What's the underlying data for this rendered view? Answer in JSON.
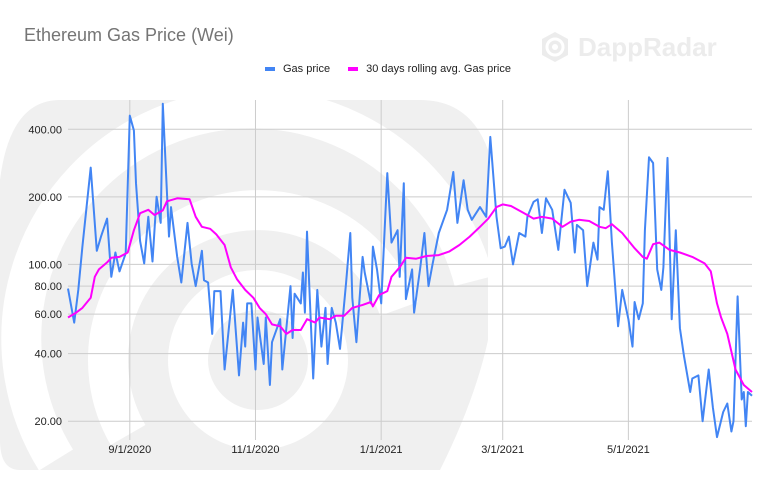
{
  "chart_data": {
    "type": "line",
    "title": "Ethereum Gas Price (Wei)",
    "xlabel": "",
    "ylabel": "",
    "y_scale": "log",
    "ylim": [
      16.5,
      540
    ],
    "xlim": [
      "2020-08-02",
      "2021-06-30"
    ],
    "grid": true,
    "legend_position": "top",
    "y_ticks": [
      "20.00",
      "40.00",
      "60.00",
      "80.00",
      "100.00",
      "200.00",
      "400.00"
    ],
    "y_tick_values": [
      20,
      40,
      60,
      80,
      100,
      200,
      400
    ],
    "x_ticks": [
      "9/1/2020",
      "11/1/2020",
      "1/1/2021",
      "3/1/2021",
      "5/1/2021"
    ],
    "x_tick_dates": [
      "2020-09-01",
      "2020-11-01",
      "2021-01-01",
      "2021-03-01",
      "2021-05-01"
    ],
    "series": [
      {
        "name": "Gas price",
        "color": "#4285f4",
        "x": [
          "2020-08-02",
          "2020-08-05",
          "2020-08-07",
          "2020-08-09",
          "2020-08-13",
          "2020-08-16",
          "2020-08-18",
          "2020-08-21",
          "2020-08-23",
          "2020-08-25",
          "2020-08-27",
          "2020-08-30",
          "2020-09-01",
          "2020-09-03",
          "2020-09-04",
          "2020-09-06",
          "2020-09-08",
          "2020-09-10",
          "2020-09-12",
          "2020-09-14",
          "2020-09-16",
          "2020-09-17",
          "2020-09-20",
          "2020-09-21",
          "2020-09-24",
          "2020-09-26",
          "2020-09-29",
          "2020-10-01",
          "2020-10-03",
          "2020-10-06",
          "2020-10-07",
          "2020-10-09",
          "2020-10-11",
          "2020-10-12",
          "2020-10-15",
          "2020-10-17",
          "2020-10-21",
          "2020-10-24",
          "2020-10-26",
          "2020-10-27",
          "2020-10-28",
          "2020-10-30",
          "2020-11-01",
          "2020-11-02",
          "2020-11-05",
          "2020-11-06",
          "2020-11-08",
          "2020-11-09",
          "2020-11-13",
          "2020-11-14",
          "2020-11-18",
          "2020-11-19",
          "2020-11-20",
          "2020-11-23",
          "2020-11-24",
          "2020-11-25",
          "2020-11-26",
          "2020-11-29",
          "2020-12-01",
          "2020-12-03",
          "2020-12-05",
          "2020-12-06",
          "2020-12-08",
          "2020-12-10",
          "2020-12-12",
          "2020-12-15",
          "2020-12-17",
          "2020-12-18",
          "2020-12-20",
          "2020-12-23",
          "2020-12-24",
          "2020-12-27",
          "2020-12-28",
          "2020-12-30",
          "2021-01-01",
          "2021-01-04",
          "2021-01-06",
          "2021-01-09",
          "2021-01-10",
          "2021-01-12",
          "2021-01-13",
          "2021-01-16",
          "2021-01-17",
          "2021-01-20",
          "2021-01-22",
          "2021-01-24",
          "2021-01-26",
          "2021-01-29",
          "2021-02-02",
          "2021-02-05",
          "2021-02-07",
          "2021-02-10",
          "2021-02-12",
          "2021-02-14",
          "2021-02-18",
          "2021-02-21",
          "2021-02-23",
          "2021-02-26",
          "2021-02-28",
          "2021-03-02",
          "2021-03-04",
          "2021-03-06",
          "2021-03-09",
          "2021-03-12",
          "2021-03-13",
          "2021-03-16",
          "2021-03-18",
          "2021-03-20",
          "2021-03-22",
          "2021-03-25",
          "2021-03-28",
          "2021-03-31",
          "2021-04-03",
          "2021-04-05",
          "2021-04-06",
          "2021-04-09",
          "2021-04-11",
          "2021-04-14",
          "2021-04-16",
          "2021-04-17",
          "2021-04-19",
          "2021-04-21",
          "2021-04-23",
          "2021-04-26",
          "2021-04-28",
          "2021-05-01",
          "2021-05-03",
          "2021-05-04",
          "2021-05-06",
          "2021-05-08",
          "2021-05-09",
          "2021-05-11",
          "2021-05-13",
          "2021-05-15",
          "2021-05-17",
          "2021-05-18",
          "2021-05-20",
          "2021-05-22",
          "2021-05-24",
          "2021-05-26",
          "2021-05-28",
          "2021-05-31",
          "2021-06-01",
          "2021-06-04",
          "2021-06-06",
          "2021-06-09",
          "2021-06-11",
          "2021-06-13",
          "2021-06-16",
          "2021-06-18",
          "2021-06-20",
          "2021-06-21",
          "2021-06-23",
          "2021-06-25",
          "2021-06-26",
          "2021-06-27",
          "2021-06-28",
          "2021-06-30"
        ],
        "values": [
          78,
          55,
          77,
          120,
          270,
          115,
          133,
          160,
          88,
          113,
          93,
          112,
          460,
          395,
          230,
          127,
          101,
          163,
          103,
          200,
          153,
          520,
          133,
          180,
          108,
          83,
          153,
          101,
          80,
          115,
          85,
          83,
          49,
          76,
          76,
          34,
          77,
          32,
          55,
          43,
          67,
          67,
          34,
          58,
          36,
          58,
          29,
          45,
          57,
          34,
          80,
          47,
          74,
          67,
          92,
          61,
          140,
          31,
          77,
          43,
          64,
          36,
          64,
          55,
          42,
          83,
          138,
          71,
          45,
          108,
          92,
          67,
          120,
          95,
          67,
          255,
          125,
          142,
          88,
          230,
          70,
          95,
          61,
          97,
          138,
          80,
          101,
          138,
          175,
          258,
          153,
          237,
          175,
          158,
          180,
          163,
          370,
          163,
          118,
          120,
          133,
          100,
          138,
          133,
          163,
          190,
          195,
          138,
          197,
          175,
          116,
          215,
          188,
          113,
          150,
          142,
          80,
          125,
          105,
          180,
          175,
          260,
          125,
          53,
          77,
          57,
          43,
          68,
          57,
          67,
          142,
          300,
          283,
          95,
          77,
          97,
          298,
          57,
          142,
          52,
          39,
          27,
          31,
          32,
          20,
          34,
          23,
          17,
          22,
          24,
          18,
          20,
          72,
          25,
          27,
          19,
          27,
          26
        ]
      },
      {
        "name": "30 days rolling avg. Gas price",
        "color": "#ff00ff",
        "x": [
          "2020-08-02",
          "2020-08-06",
          "2020-08-09",
          "2020-08-13",
          "2020-08-15",
          "2020-08-17",
          "2020-08-21",
          "2020-08-23",
          "2020-08-27",
          "2020-08-31",
          "2020-09-03",
          "2020-09-06",
          "2020-09-10",
          "2020-09-13",
          "2020-09-17",
          "2020-09-19",
          "2020-09-24",
          "2020-09-30",
          "2020-10-03",
          "2020-10-06",
          "2020-10-10",
          "2020-10-13",
          "2020-10-17",
          "2020-10-20",
          "2020-10-23",
          "2020-10-27",
          "2020-10-31",
          "2020-11-03",
          "2020-11-06",
          "2020-11-09",
          "2020-11-13",
          "2020-11-16",
          "2020-11-19",
          "2020-11-23",
          "2020-11-26",
          "2020-11-30",
          "2020-12-02",
          "2020-12-07",
          "2020-12-10",
          "2020-12-14",
          "2020-12-18",
          "2020-12-23",
          "2020-12-27",
          "2020-12-28",
          "2020-12-31",
          "2021-01-04",
          "2021-01-06",
          "2021-01-10",
          "2021-01-13",
          "2021-01-18",
          "2021-01-23",
          "2021-01-29",
          "2021-02-03",
          "2021-02-08",
          "2021-02-13",
          "2021-02-18",
          "2021-02-22",
          "2021-02-26",
          "2021-03-01",
          "2021-03-05",
          "2021-03-11",
          "2021-03-16",
          "2021-03-20",
          "2021-03-25",
          "2021-03-30",
          "2021-04-03",
          "2021-04-07",
          "2021-04-12",
          "2021-04-17",
          "2021-04-20",
          "2021-04-23",
          "2021-04-28",
          "2021-05-04",
          "2021-05-08",
          "2021-05-10",
          "2021-05-13",
          "2021-05-16",
          "2021-05-21",
          "2021-05-26",
          "2021-06-01",
          "2021-06-07",
          "2021-06-10",
          "2021-06-13",
          "2021-06-15",
          "2021-06-18",
          "2021-06-22",
          "2021-06-26",
          "2021-06-30"
        ],
        "values": [
          58,
          61,
          64,
          71,
          88,
          95,
          102,
          107,
          108,
          113,
          142,
          169,
          175,
          166,
          174,
          191,
          197,
          195,
          163,
          147,
          144,
          136,
          122,
          97,
          86,
          77,
          71,
          64,
          60,
          54,
          53,
          49,
          51,
          51,
          57,
          55,
          58,
          57,
          59,
          59,
          64,
          66,
          68,
          65,
          73,
          76,
          88,
          97,
          107,
          106,
          109,
          110,
          114,
          122,
          133,
          147,
          160,
          180,
          185,
          182,
          170,
          160,
          163,
          160,
          147,
          155,
          158,
          156,
          147,
          145,
          151,
          138,
          118,
          108,
          106,
          123,
          125,
          116,
          113,
          108,
          101,
          93,
          67,
          58,
          49,
          34,
          29,
          27
        ]
      }
    ]
  },
  "watermark": {
    "brand": "DappRadar"
  }
}
